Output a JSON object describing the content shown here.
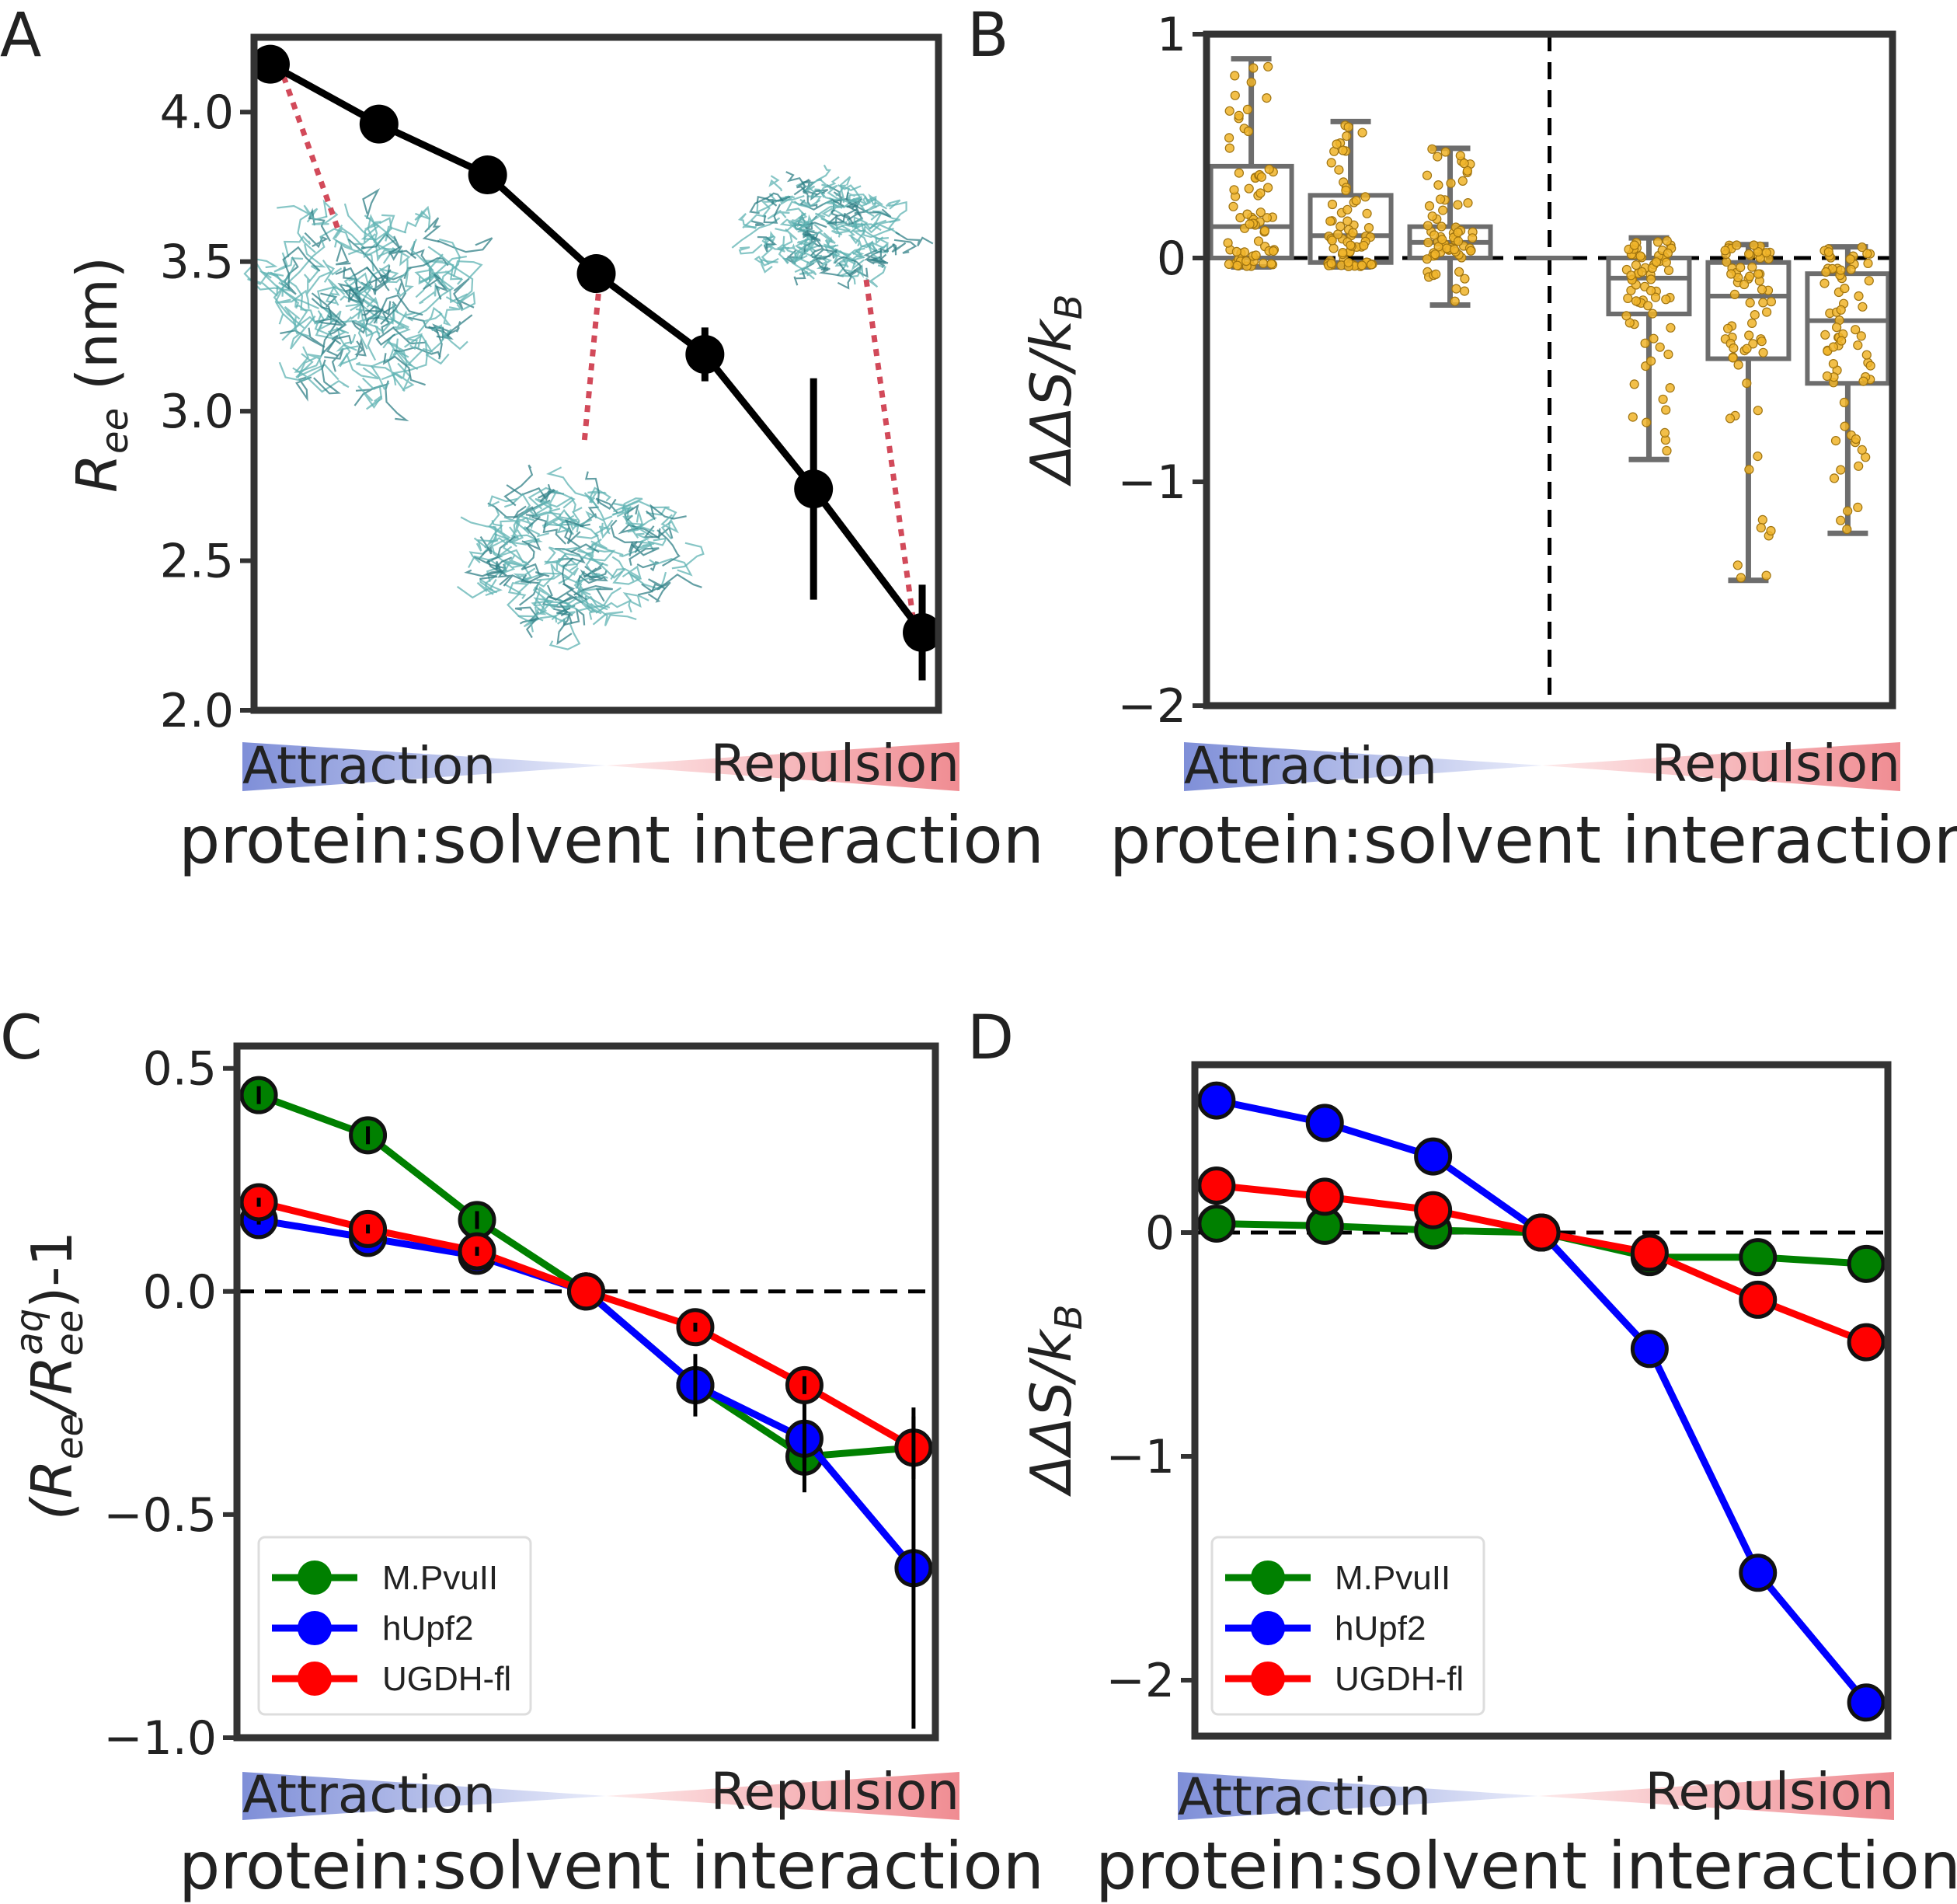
{
  "chart_data": [
    {
      "panel": "A",
      "type": "line",
      "ylabel_main": "R",
      "ylabel_sub": "ee",
      "ylabel_unit": " (nm)",
      "xlabel": "protein:solvent interaction",
      "gradient_left": "Attraction",
      "gradient_right": "Repulsion",
      "ylim": [
        2.0,
        4.25
      ],
      "yticks": [
        "2.0",
        "2.5",
        "3.0",
        "3.5",
        "4.0"
      ],
      "series": [
        {
          "color": "#000000",
          "x": [
            0,
            1,
            2,
            3,
            4,
            5,
            6
          ],
          "values": [
            4.16,
            3.96,
            3.79,
            3.46,
            3.19,
            2.74,
            2.26
          ],
          "errors": [
            0.01,
            0.01,
            0.01,
            0.03,
            0.09,
            0.37,
            0.16
          ]
        }
      ]
    },
    {
      "panel": "B",
      "type": "box",
      "ylabel": "ΔΔS/k",
      "ylabel_sub": "B",
      "xlabel": "protein:solvent interaction",
      "gradient_left": "Attraction",
      "gradient_right": "Repulsion",
      "ylim": [
        -2,
        1
      ],
      "yticks": [
        "−2",
        "−1",
        "0",
        "1"
      ],
      "boxes": [
        {
          "x": 0,
          "q1": 0.0,
          "median": 0.14,
          "q3": 0.41,
          "whisker_low": -0.04,
          "whisker_high": 0.89
        },
        {
          "x": 1,
          "q1": -0.02,
          "median": 0.1,
          "q3": 0.28,
          "whisker_low": -0.04,
          "whisker_high": 0.61
        },
        {
          "x": 2,
          "q1": 0.0,
          "median": 0.07,
          "q3": 0.14,
          "whisker_low": -0.21,
          "whisker_high": 0.49
        },
        {
          "x": 4,
          "q1": -0.25,
          "median": -0.09,
          "q3": 0.0,
          "whisker_low": -0.9,
          "whisker_high": 0.09
        },
        {
          "x": 5,
          "q1": -0.45,
          "median": -0.17,
          "q3": -0.02,
          "whisker_low": -1.44,
          "whisker_high": 0.06
        },
        {
          "x": 6,
          "q1": -0.56,
          "median": -0.28,
          "q3": -0.07,
          "whisker_low": -1.23,
          "whisker_high": 0.05
        }
      ],
      "points_color": "#f0b429"
    },
    {
      "panel": "C",
      "type": "line",
      "ylabel_parts": [
        "(R",
        "ee",
        "/R",
        "ee",
        "aq",
        ")-1"
      ],
      "xlabel": "protein:solvent interaction",
      "gradient_left": "Attraction",
      "gradient_right": "Repulsion",
      "ylim": [
        -1.0,
        0.55
      ],
      "yticks": [
        "−1.0",
        "−0.5",
        "0.0",
        "0.5"
      ],
      "yticks_values": [
        -1.0,
        -0.5,
        0.0,
        0.5
      ],
      "series": [
        {
          "name": "M.PvuII",
          "color": "#008000",
          "x": [
            0,
            1,
            2,
            3,
            4,
            5,
            6
          ],
          "values": [
            0.44,
            0.35,
            0.16,
            0.0,
            -0.21,
            -0.37,
            -0.35
          ],
          "errors": [
            0.02,
            0.02,
            0.02,
            0,
            0.02,
            0.02,
            0.02
          ]
        },
        {
          "name": "hUpf2",
          "color": "#0000ff",
          "x": [
            0,
            1,
            2,
            3,
            4,
            5,
            6
          ],
          "values": [
            0.16,
            0.12,
            0.08,
            0.0,
            -0.21,
            -0.33,
            -0.62
          ],
          "errors": [
            0.01,
            0.01,
            0.01,
            0,
            0.07,
            0.12,
            0.36
          ]
        },
        {
          "name": "UGDH-fl",
          "color": "#ff0000",
          "x": [
            0,
            1,
            2,
            3,
            4,
            5,
            6
          ],
          "values": [
            0.2,
            0.14,
            0.09,
            0.0,
            -0.08,
            -0.21,
            -0.35
          ],
          "errors": [
            0.01,
            0.01,
            0.01,
            0,
            0.01,
            0.02,
            0.07
          ]
        }
      ]
    },
    {
      "panel": "D",
      "type": "line",
      "ylabel": "ΔΔS/k",
      "ylabel_sub": "B",
      "xlabel": "protein:solvent interaction",
      "gradient_left": "Attraction",
      "gradient_right": "Repulsion",
      "ylim": [
        -2.25,
        0.75
      ],
      "yticks": [
        "−2",
        "−1",
        "0"
      ],
      "yticks_values": [
        -2,
        -1,
        0
      ],
      "series": [
        {
          "name": "M.PvuII",
          "color": "#008000",
          "x": [
            0,
            1,
            2,
            3,
            4,
            5,
            6
          ],
          "values": [
            0.04,
            0.03,
            0.01,
            0.0,
            -0.11,
            -0.11,
            -0.14
          ]
        },
        {
          "name": "hUpf2",
          "color": "#0000ff",
          "x": [
            0,
            1,
            2,
            3,
            4,
            5,
            6
          ],
          "values": [
            0.59,
            0.49,
            0.34,
            0.0,
            -0.52,
            -1.52,
            -2.1
          ]
        },
        {
          "name": "UGDH-fl",
          "color": "#ff0000",
          "x": [
            0,
            1,
            2,
            3,
            4,
            5,
            6
          ],
          "values": [
            0.21,
            0.16,
            0.1,
            0.0,
            -0.09,
            -0.3,
            -0.49
          ]
        }
      ]
    }
  ],
  "panel_letters": [
    "A",
    "B",
    "C",
    "D"
  ]
}
